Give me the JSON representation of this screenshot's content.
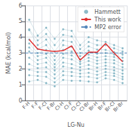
{
  "chart_data": {
    "type": "line",
    "xlabel": "LG-Nu",
    "ylabel": "MAE (kcal/mol)",
    "categories": [
      "F-H",
      "F-F",
      "F-Cl",
      "F-Br",
      "Cl-H",
      "Cl-F",
      "Cl-Cl",
      "Cl-Br",
      "Br-H",
      "Br-F",
      "Br-Cl",
      "Br-Br"
    ],
    "series": [
      {
        "name": "Hammett",
        "type": "line",
        "marker": "circle",
        "color": "#7aafc0",
        "values": [
          5.1,
          4.1,
          4.6,
          3.9,
          4.5,
          4.4,
          3.5,
          4.0,
          3.8,
          3.7,
          3.5,
          3.3
        ]
      },
      {
        "name": "Hammett",
        "type": "line",
        "marker": "circle",
        "color": "#7aafc0",
        "values": [
          4.5,
          3.8,
          4.2,
          3.5,
          4.15,
          4.05,
          3.25,
          3.7,
          3.5,
          3.5,
          3.3,
          3.1
        ]
      },
      {
        "name": "Hammett",
        "type": "line",
        "marker": "circle",
        "color": "#7aafc0",
        "values": [
          4.45,
          3.5,
          3.85,
          3.1,
          3.8,
          3.7,
          3.0,
          3.42,
          3.22,
          3.2,
          3.05,
          2.9
        ]
      },
      {
        "name": "Hammett",
        "type": "line",
        "marker": "circle",
        "color": "#7aafc0",
        "values": [
          3.85,
          3.25,
          3.5,
          2.8,
          3.5,
          3.4,
          2.8,
          3.15,
          2.96,
          3.0,
          2.9,
          2.7
        ]
      },
      {
        "name": "Hammett",
        "type": "line",
        "marker": "circle",
        "color": "#7aafc0",
        "values": [
          3.6,
          3.0,
          3.2,
          2.55,
          3.2,
          3.1,
          2.6,
          2.9,
          2.72,
          2.8,
          2.75,
          2.5
        ]
      },
      {
        "name": "Hammett",
        "type": "line",
        "marker": "circle",
        "color": "#7aafc0",
        "values": [
          3.35,
          2.8,
          2.95,
          2.3,
          2.95,
          2.85,
          2.45,
          2.7,
          2.52,
          2.6,
          2.55,
          2.3
        ]
      },
      {
        "name": "Hammett",
        "type": "line",
        "marker": "circle",
        "color": "#7aafc0",
        "values": [
          3.1,
          2.55,
          2.7,
          2.1,
          2.7,
          2.6,
          2.3,
          2.5,
          2.32,
          2.4,
          2.35,
          2.1
        ]
      },
      {
        "name": "Hammett",
        "type": "line",
        "marker": "circle",
        "color": "#7aafc0",
        "values": [
          2.7,
          2.3,
          2.4,
          1.9,
          2.4,
          2.3,
          2.1,
          2.25,
          2.08,
          2.2,
          2.1,
          1.9
        ]
      },
      {
        "name": "Hammett",
        "type": "line",
        "marker": "circle",
        "color": "#7aafc0",
        "values": [
          2.3,
          2.05,
          2.1,
          1.65,
          2.15,
          2.05,
          1.9,
          2.0,
          1.84,
          2.0,
          1.9,
          1.7
        ]
      },
      {
        "name": "Hammett",
        "type": "line",
        "marker": "circle",
        "color": "#7aafc0",
        "values": [
          1.95,
          1.8,
          1.8,
          1.4,
          1.85,
          1.8,
          1.7,
          1.75,
          1.62,
          1.8,
          1.72,
          1.5
        ]
      },
      {
        "name": "Hammett",
        "type": "line",
        "marker": "circle",
        "color": "#7aafc0",
        "values": [
          1.6,
          1.55,
          1.5,
          1.15,
          1.6,
          1.55,
          1.5,
          1.5,
          1.4,
          1.6,
          1.55,
          1.35
        ]
      },
      {
        "name": "Hammett",
        "type": "line",
        "marker": "circle",
        "color": "#7aafc0",
        "values": [
          1.2,
          1.3,
          1.1,
          0.9,
          1.3,
          1.25,
          1.25,
          1.2,
          1.15,
          1.4,
          1.3,
          1.1
        ]
      },
      {
        "name": "This work",
        "type": "line",
        "color": "#e03030",
        "values": [
          3.85,
          3.25,
          3.15,
          3.1,
          3.15,
          3.45,
          2.55,
          3.05,
          3.05,
          3.6,
          3.0,
          2.45
        ]
      },
      {
        "name": "MP2 error",
        "type": "hline",
        "y": 3.0,
        "color": "#5588bb",
        "line_style": "dashed"
      }
    ],
    "ylim": [
      0,
      6
    ],
    "yticks": [
      0,
      1,
      2,
      3,
      4,
      5,
      6
    ],
    "grid": true,
    "legend": "upper right"
  }
}
